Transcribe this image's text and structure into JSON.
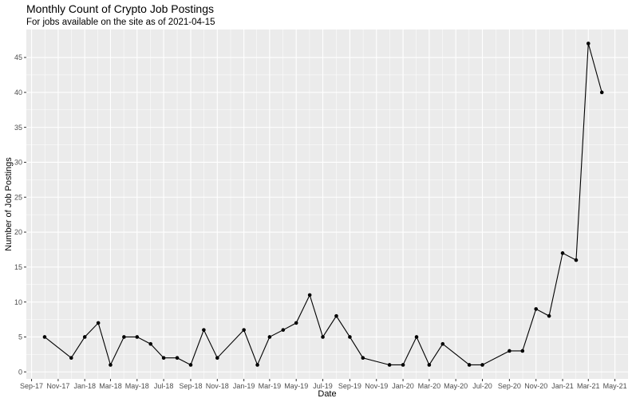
{
  "chart_data": {
    "type": "line",
    "title": "Monthly Count of Crypto Job Postings",
    "subtitle": "For jobs available on the site as of 2021-04-15",
    "xlabel": "Date",
    "ylabel": "Number of Job Postings",
    "ylim": [
      -1,
      49
    ],
    "y_ticks": [
      0,
      5,
      10,
      15,
      20,
      25,
      30,
      35,
      40,
      45
    ],
    "x_ticks": [
      {
        "date": "2017-09-01",
        "label": "Sep-17"
      },
      {
        "date": "2017-11-01",
        "label": "Nov-17"
      },
      {
        "date": "2018-01-01",
        "label": "Jan-18"
      },
      {
        "date": "2018-03-01",
        "label": "Mar-18"
      },
      {
        "date": "2018-05-01",
        "label": "May-18"
      },
      {
        "date": "2018-07-01",
        "label": "Jul-18"
      },
      {
        "date": "2018-09-01",
        "label": "Sep-18"
      },
      {
        "date": "2018-11-01",
        "label": "Nov-18"
      },
      {
        "date": "2019-01-01",
        "label": "Jan-19"
      },
      {
        "date": "2019-03-01",
        "label": "Mar-19"
      },
      {
        "date": "2019-05-01",
        "label": "May-19"
      },
      {
        "date": "2019-07-01",
        "label": "Jul-19"
      },
      {
        "date": "2019-09-01",
        "label": "Sep-19"
      },
      {
        "date": "2019-11-01",
        "label": "Nov-19"
      },
      {
        "date": "2020-01-01",
        "label": "Jan-20"
      },
      {
        "date": "2020-03-01",
        "label": "Mar-20"
      },
      {
        "date": "2020-05-01",
        "label": "May-20"
      },
      {
        "date": "2020-07-01",
        "label": "Jul-20"
      },
      {
        "date": "2020-09-01",
        "label": "Sep-20"
      },
      {
        "date": "2020-11-01",
        "label": "Nov-20"
      },
      {
        "date": "2021-01-01",
        "label": "Jan-21"
      },
      {
        "date": "2021-03-01",
        "label": "Mar-21"
      },
      {
        "date": "2021-05-01",
        "label": "May-21"
      }
    ],
    "points": [
      {
        "x": "2017-10-01",
        "y": 5
      },
      {
        "x": "2017-12-01",
        "y": 2
      },
      {
        "x": "2018-01-01",
        "y": 5
      },
      {
        "x": "2018-02-01",
        "y": 7
      },
      {
        "x": "2018-03-01",
        "y": 1
      },
      {
        "x": "2018-04-01",
        "y": 5
      },
      {
        "x": "2018-05-01",
        "y": 5
      },
      {
        "x": "2018-06-01",
        "y": 4
      },
      {
        "x": "2018-07-01",
        "y": 2
      },
      {
        "x": "2018-08-01",
        "y": 2
      },
      {
        "x": "2018-09-01",
        "y": 1
      },
      {
        "x": "2018-10-01",
        "y": 6
      },
      {
        "x": "2018-11-01",
        "y": 2
      },
      {
        "x": "2019-01-01",
        "y": 6
      },
      {
        "x": "2019-02-01",
        "y": 1
      },
      {
        "x": "2019-03-01",
        "y": 5
      },
      {
        "x": "2019-04-01",
        "y": 6
      },
      {
        "x": "2019-05-01",
        "y": 7
      },
      {
        "x": "2019-06-01",
        "y": 11
      },
      {
        "x": "2019-07-01",
        "y": 5
      },
      {
        "x": "2019-08-01",
        "y": 8
      },
      {
        "x": "2019-09-01",
        "y": 5
      },
      {
        "x": "2019-10-01",
        "y": 2
      },
      {
        "x": "2019-12-01",
        "y": 1
      },
      {
        "x": "2020-01-01",
        "y": 1
      },
      {
        "x": "2020-02-01",
        "y": 5
      },
      {
        "x": "2020-03-01",
        "y": 1
      },
      {
        "x": "2020-04-01",
        "y": 4
      },
      {
        "x": "2020-06-01",
        "y": 1
      },
      {
        "x": "2020-07-01",
        "y": 1
      },
      {
        "x": "2020-09-01",
        "y": 3
      },
      {
        "x": "2020-10-01",
        "y": 3
      },
      {
        "x": "2020-11-01",
        "y": 9
      },
      {
        "x": "2020-12-01",
        "y": 8
      },
      {
        "x": "2021-01-01",
        "y": 17
      },
      {
        "x": "2021-02-01",
        "y": 16
      },
      {
        "x": "2021-03-01",
        "y": 47
      },
      {
        "x": "2021-04-01",
        "y": 40
      }
    ],
    "grid": true,
    "legend": "none",
    "colors": {
      "panel": "#ebebeb",
      "grid": "#ffffff",
      "line": "#000000",
      "point": "#000000"
    }
  }
}
